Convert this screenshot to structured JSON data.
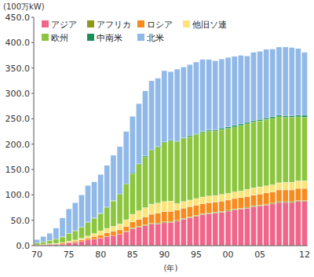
{
  "chart_data": {
    "type": "bar",
    "stacked": true,
    "grid": false,
    "legend": "upper left",
    "y_label": "(100万kW)",
    "x_label": "(年)",
    "categories": [
      "70",
      null,
      null,
      null,
      null,
      "75",
      null,
      null,
      null,
      null,
      "80",
      null,
      null,
      null,
      null,
      "85",
      null,
      null,
      null,
      null,
      "90",
      null,
      null,
      null,
      null,
      "95",
      null,
      null,
      null,
      null,
      "00",
      null,
      null,
      null,
      null,
      "05",
      null,
      null,
      null,
      null,
      null,
      null,
      "12"
    ],
    "ylim": [
      0,
      450
    ],
    "yticks": [
      {
        "value": 0,
        "label": "0.0"
      },
      {
        "value": 50,
        "label": "50.0"
      },
      {
        "value": 100,
        "label": "100.0"
      },
      {
        "value": 150,
        "label": "150.0"
      },
      {
        "value": 200,
        "label": "200.0"
      },
      {
        "value": 250,
        "label": "250.0"
      },
      {
        "value": 300,
        "label": "300.0"
      },
      {
        "value": 350,
        "label": "350.0"
      },
      {
        "value": 400,
        "label": "400.0"
      },
      {
        "value": 450,
        "label": "450.0"
      }
    ],
    "series": [
      {
        "name": "アジア",
        "color": "#f0668a",
        "values": [
          1,
          1.5,
          2,
          2.5,
          3,
          5,
          6,
          8,
          11,
          13,
          15,
          18,
          20,
          22,
          27,
          33,
          36,
          39,
          42,
          43,
          45,
          46,
          48,
          52,
          55,
          58,
          61,
          63,
          64,
          66,
          68,
          70,
          72,
          74,
          77,
          78,
          80,
          82,
          85,
          85,
          85,
          87,
          87
        ]
      },
      {
        "name": "アフリカ",
        "color": "#8c9a1c",
        "values": [
          0,
          0,
          0,
          0,
          0,
          0,
          0,
          0,
          0,
          0,
          0,
          0,
          0,
          0,
          1,
          1.8,
          1.8,
          1.8,
          1.8,
          1.8,
          1.8,
          1.8,
          1.8,
          1.8,
          1.8,
          1.8,
          1.8,
          1.8,
          1.8,
          1.8,
          1.8,
          1.8,
          1.8,
          1.8,
          1.8,
          1.8,
          1.8,
          1.8,
          1.8,
          1.8,
          1.8,
          1.8,
          1.8
        ]
      },
      {
        "name": "ロシア",
        "color": "#f78b1e",
        "values": [
          0.5,
          1,
          1,
          1.5,
          2,
          2.5,
          3,
          3.5,
          4,
          5,
          6,
          7,
          8,
          9,
          10,
          12,
          14,
          16,
          18,
          19,
          20,
          20,
          20,
          20,
          20,
          20,
          20,
          20,
          20,
          20,
          20,
          21,
          21,
          21,
          21,
          22,
          22,
          22,
          23,
          23,
          23,
          24,
          24
        ]
      },
      {
        "name": "他旧ソ連",
        "color": "#fbe47a",
        "values": [
          0,
          0,
          0.5,
          0.5,
          1,
          1.5,
          2,
          3,
          4,
          6,
          8,
          9,
          10,
          12,
          13,
          15,
          17,
          18,
          20,
          20,
          20,
          20,
          13,
          13,
          13,
          13,
          13,
          13,
          13,
          13,
          13,
          13,
          13,
          14,
          14,
          14,
          14,
          14,
          14,
          15,
          15,
          15,
          15
        ]
      },
      {
        "name": "欧州",
        "color": "#8cc63f",
        "values": [
          4,
          5,
          7,
          9,
          11,
          15,
          18,
          22,
          27,
          30,
          34,
          41,
          50,
          58,
          70,
          80,
          91,
          100,
          106,
          110,
          116,
          118,
          122,
          124,
          125,
          126,
          127,
          128,
          127,
          128,
          128,
          128,
          129,
          129,
          130,
          130,
          131,
          131,
          130,
          128,
          128,
          126,
          125
        ]
      },
      {
        "name": "中南米",
        "color": "#1a8f5a",
        "values": [
          0,
          0,
          0,
          0,
          0.5,
          0.5,
          0.5,
          0.5,
          0.5,
          0.5,
          1,
          1,
          1,
          1,
          1,
          2,
          2,
          2,
          2,
          2,
          2,
          2,
          2,
          2,
          2,
          2,
          2,
          2,
          2.5,
          3,
          3,
          3,
          3,
          3,
          3,
          3,
          3,
          3.5,
          3.5,
          3.5,
          3.5,
          3.5,
          4
        ]
      },
      {
        "name": "北米",
        "color": "#90b9e8",
        "values": [
          6.5,
          10.5,
          14,
          21,
          37,
          48,
          55,
          63,
          72,
          71,
          76,
          82,
          89,
          93,
          103,
          111,
          118,
          128,
          135,
          134,
          140,
          135,
          141,
          139,
          140,
          141,
          142,
          139,
          136,
          136,
          137,
          136,
          135,
          131,
          134,
          134,
          135,
          133,
          134,
          135,
          134,
          131,
          124
        ]
      }
    ]
  }
}
